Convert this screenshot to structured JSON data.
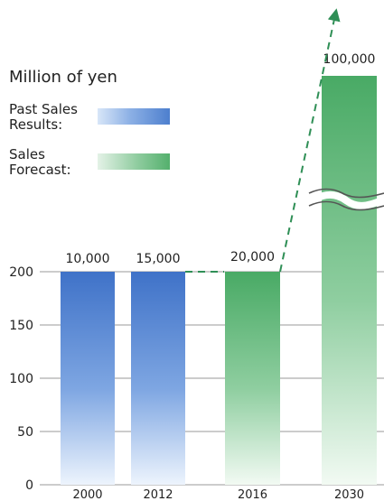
{
  "chart_data": {
    "type": "bar",
    "ylabel": "Million of yen",
    "categories": [
      "2000",
      "2012",
      "2016",
      "2030"
    ],
    "series": [
      {
        "name": "Past Sales Results:",
        "values": [
          10000,
          15000,
          null,
          null
        ]
      },
      {
        "name": "Sales Forecast:",
        "values": [
          null,
          null,
          20000,
          100000
        ]
      }
    ],
    "values": [
      10000,
      15000,
      20000,
      100000
    ],
    "value_labels": [
      "10,000",
      "15,000",
      "20,000",
      "100,000"
    ],
    "y_ticks": [
      0,
      50,
      100,
      150,
      200
    ],
    "ylim": [
      0,
      200
    ],
    "grid": true,
    "axis_break": true,
    "trend_line": "dashed arrow from the 2012 value through 2016 to beyond 2030",
    "colors": {
      "past": "#4a7ed0",
      "forecast": "#4fae69",
      "trend": "#2f8f56",
      "grid": "#9a9a9a",
      "text": "#222222"
    }
  },
  "legend": {
    "title": "Million of yen",
    "items": [
      {
        "label": "Past Sales\nResults:",
        "kind": "past"
      },
      {
        "label": "Sales\nForecast:",
        "kind": "forecast"
      }
    ]
  }
}
